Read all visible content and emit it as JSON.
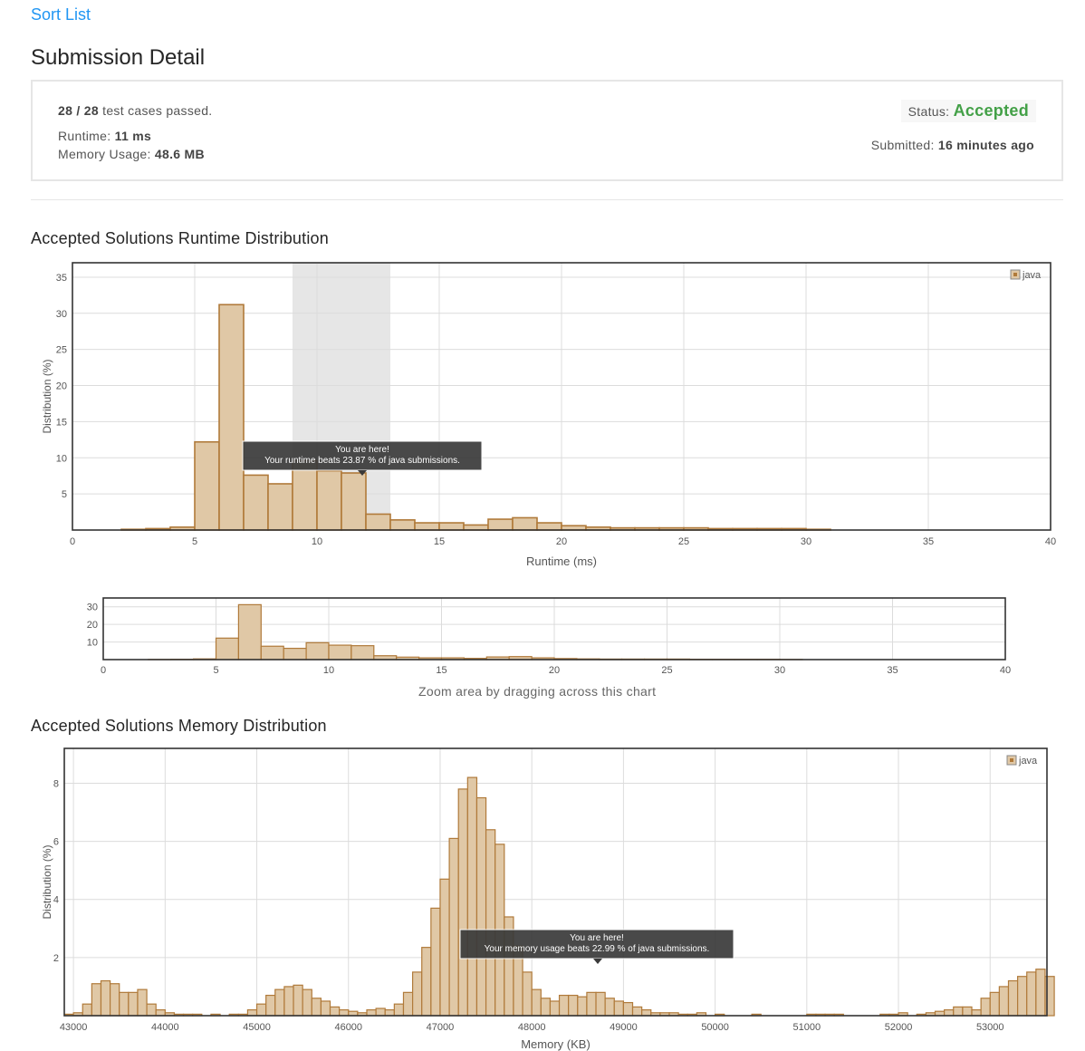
{
  "header": {
    "problem_link": "Sort List",
    "page_title": "Submission Detail"
  },
  "summary": {
    "passed": "28 / 28",
    "passed_suffix": "test cases passed.",
    "runtime_label": "Runtime:",
    "runtime_value": "11 ms",
    "memory_label": "Memory Usage:",
    "memory_value": "48.6 MB",
    "status_label": "Status:",
    "status_value": "Accepted",
    "submitted_label": "Submitted:",
    "submitted_value": "16 minutes ago"
  },
  "colors": {
    "bar_fill": "#e0c8a6",
    "bar_stroke": "#b07a3a",
    "accepted": "#43a047",
    "link": "#2196f3"
  },
  "runtime_section": {
    "title": "Accepted Solutions Runtime Distribution",
    "zoom_hint": "Zoom area by dragging across this chart"
  },
  "memory_section": {
    "title": "Accepted Solutions Memory Distribution"
  },
  "chart_data": [
    {
      "type": "bar",
      "title": "Accepted Solutions Runtime Distribution",
      "xlabel": "Runtime (ms)",
      "ylabel": "Distribution (%)",
      "xlim": [
        0,
        40
      ],
      "ylim": [
        0,
        37
      ],
      "xticks": [
        0,
        5,
        10,
        15,
        20,
        25,
        30,
        35,
        40
      ],
      "yticks": [
        5,
        10,
        15,
        20,
        25,
        30,
        35
      ],
      "bin_width": 1,
      "x": [
        2,
        3,
        4,
        5,
        6,
        7,
        8,
        9,
        10,
        11,
        12,
        13,
        14,
        15,
        16,
        17,
        18,
        19,
        20,
        21,
        22,
        23,
        24,
        25,
        26,
        27,
        28,
        29,
        30
      ],
      "series": [
        {
          "name": "java",
          "values": [
            0.1,
            0.2,
            0.4,
            12.2,
            31.2,
            7.6,
            6.4,
            9.6,
            8.2,
            7.9,
            2.2,
            1.4,
            1.0,
            1.0,
            0.7,
            1.5,
            1.7,
            1.0,
            0.6,
            0.4,
            0.3,
            0.3,
            0.3,
            0.3,
            0.2,
            0.2,
            0.2,
            0.2,
            0.1
          ]
        }
      ],
      "highlight_range": [
        9,
        13
      ],
      "legend": "top-right",
      "tooltip": {
        "line1": "You are here!",
        "line2": "Your runtime beats 23.87 % of java submissions."
      },
      "grid": true
    },
    {
      "type": "bar",
      "title": "",
      "xlabel": "",
      "ylabel": "",
      "xlim": [
        0,
        40
      ],
      "ylim": [
        0,
        35
      ],
      "xticks": [
        0,
        5,
        10,
        15,
        20,
        25,
        30,
        35,
        40
      ],
      "yticks": [
        10,
        20,
        30
      ],
      "bin_width": 1,
      "x": [
        2,
        3,
        4,
        5,
        6,
        7,
        8,
        9,
        10,
        11,
        12,
        13,
        14,
        15,
        16,
        17,
        18,
        19,
        20,
        21,
        22,
        23,
        24,
        25,
        26,
        27,
        28,
        29,
        30
      ],
      "series": [
        {
          "name": "java",
          "values": [
            0.1,
            0.2,
            0.4,
            12.2,
            31.2,
            7.6,
            6.4,
            9.6,
            8.2,
            7.9,
            2.2,
            1.4,
            1.0,
            1.0,
            0.7,
            1.5,
            1.7,
            1.0,
            0.6,
            0.4,
            0.3,
            0.3,
            0.3,
            0.3,
            0.2,
            0.2,
            0.2,
            0.2,
            0.1
          ]
        }
      ],
      "grid": true
    },
    {
      "type": "bar",
      "title": "Accepted Solutions Memory Distribution",
      "xlabel": "Memory (KB)",
      "ylabel": "Distribution (%)",
      "xlim": [
        42900,
        53620
      ],
      "ylim": [
        0,
        9.2
      ],
      "xticks": [
        43000,
        44000,
        45000,
        46000,
        47000,
        48000,
        49000,
        50000,
        51000,
        52000,
        53000
      ],
      "yticks": [
        2,
        4,
        6,
        8
      ],
      "bin_width": 100,
      "x": [
        42900,
        43000,
        43100,
        43200,
        43300,
        43400,
        43500,
        43600,
        43700,
        43800,
        43900,
        44000,
        44100,
        44200,
        44300,
        44500,
        44700,
        44800,
        44900,
        45000,
        45100,
        45200,
        45300,
        45400,
        45500,
        45600,
        45700,
        45800,
        45900,
        46000,
        46100,
        46200,
        46300,
        46400,
        46500,
        46600,
        46700,
        46800,
        46900,
        47000,
        47100,
        47200,
        47300,
        47400,
        47500,
        47600,
        47700,
        47800,
        47900,
        48000,
        48100,
        48200,
        48300,
        48400,
        48500,
        48600,
        48700,
        48800,
        48900,
        49000,
        49100,
        49200,
        49300,
        49400,
        49500,
        49600,
        49700,
        49800,
        50000,
        50400,
        51000,
        51100,
        51200,
        51300,
        51800,
        51900,
        52000,
        52200,
        52300,
        52400,
        52500,
        52600,
        52700,
        52800,
        52900,
        53000,
        53100,
        53200,
        53300,
        53400,
        53500,
        53600
      ],
      "series": [
        {
          "name": "java",
          "values": [
            0.05,
            0.1,
            0.4,
            1.1,
            1.2,
            1.1,
            0.8,
            0.8,
            0.9,
            0.4,
            0.2,
            0.1,
            0.05,
            0.05,
            0.05,
            0.05,
            0.05,
            0.05,
            0.2,
            0.4,
            0.7,
            0.9,
            1.0,
            1.05,
            0.9,
            0.6,
            0.5,
            0.3,
            0.2,
            0.15,
            0.1,
            0.2,
            0.25,
            0.2,
            0.4,
            0.8,
            1.5,
            2.35,
            3.7,
            4.7,
            6.1,
            7.8,
            8.2,
            7.5,
            6.4,
            5.9,
            3.4,
            2.4,
            1.5,
            0.9,
            0.6,
            0.5,
            0.7,
            0.7,
            0.65,
            0.8,
            0.8,
            0.6,
            0.5,
            0.45,
            0.3,
            0.2,
            0.1,
            0.1,
            0.1,
            0.05,
            0.05,
            0.1,
            0.05,
            0.05,
            0.05,
            0.05,
            0.05,
            0.05,
            0.05,
            0.05,
            0.1,
            0.05,
            0.1,
            0.15,
            0.2,
            0.3,
            0.3,
            0.2,
            0.6,
            0.8,
            1.0,
            1.2,
            1.35,
            1.5,
            1.6,
            1.35
          ]
        }
      ],
      "legend": "top-right",
      "tooltip": {
        "line1": "You are here!",
        "line2": "Your memory usage beats 22.99 % of java submissions."
      },
      "grid": true
    }
  ]
}
